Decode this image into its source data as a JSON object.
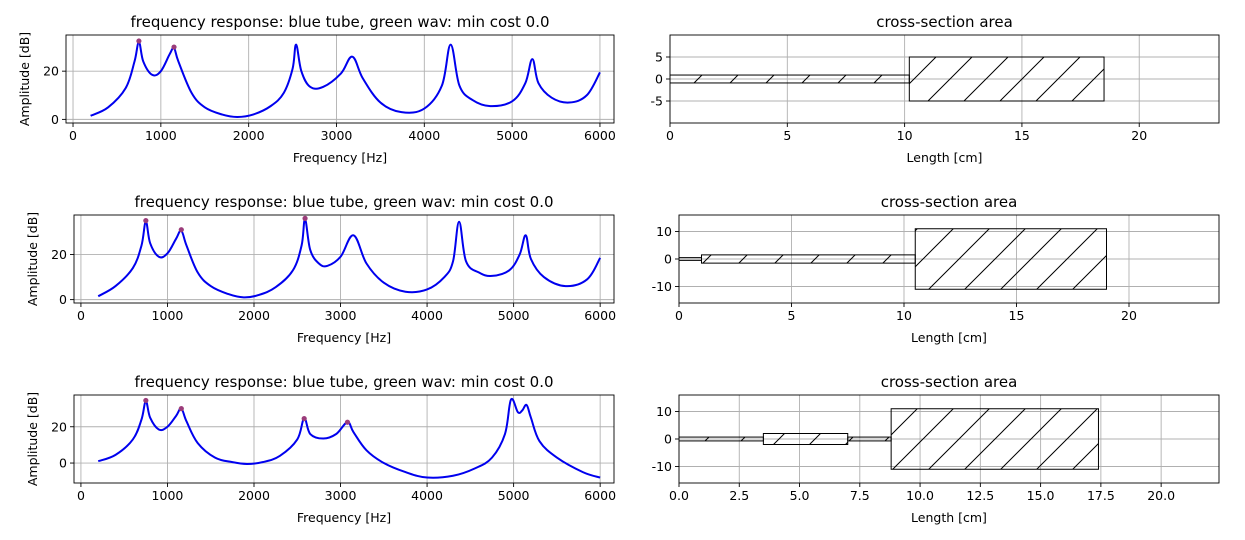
{
  "chart_data": [
    {
      "type": "line",
      "title": "frequency response: blue tube, green wav: min cost 0.0",
      "xlabel": "Frequency [Hz]",
      "ylabel": "Amplitude [dB]",
      "xlim": [
        -80,
        6160
      ],
      "ylim": [
        -1.5,
        35
      ],
      "xticks": [
        0,
        1000,
        2000,
        3000,
        4000,
        5000,
        6000
      ],
      "yticks": [
        0,
        20
      ],
      "grid": true,
      "series": [
        {
          "color": "#0000ee",
          "x": [
            200,
            400,
            600,
            700,
            750,
            800,
            900,
            1000,
            1100,
            1150,
            1200,
            1350,
            1500,
            1700,
            1870,
            2050,
            2250,
            2400,
            2500,
            2540,
            2600,
            2700,
            2850,
            3050,
            3180,
            3300,
            3500,
            3740,
            4000,
            4200,
            4300,
            4400,
            4550,
            4750,
            5000,
            5150,
            5230,
            5300,
            5450,
            5650,
            5850,
            6000
          ],
          "y": [
            1.5,
            5,
            13,
            24,
            32,
            24,
            18.5,
            20,
            27,
            29.5,
            24,
            11,
            5,
            2,
            1,
            2,
            5.5,
            11,
            21,
            31,
            20,
            13.5,
            13.5,
            19,
            26,
            17,
            7,
            3,
            4.5,
            14,
            31,
            14,
            8,
            5.5,
            7.5,
            15,
            25,
            15,
            9,
            7,
            10,
            19.5
          ]
        }
      ],
      "peaks": {
        "color": "#9b3c7a",
        "x": [
          750,
          1150
        ],
        "y": [
          32.5,
          30
        ]
      }
    },
    {
      "type": "line",
      "title": "frequency response: blue tube, green wav: min cost 0.0",
      "xlabel": "Frequency [Hz]",
      "ylabel": "Amplitude [dB]",
      "xlim": [
        -80,
        6160
      ],
      "ylim": [
        -1.5,
        37.5
      ],
      "xticks": [
        0,
        1000,
        2000,
        3000,
        4000,
        5000,
        6000
      ],
      "yticks": [
        0,
        20
      ],
      "grid": true,
      "series": [
        {
          "color": "#0000ee",
          "x": [
            200,
            400,
            600,
            700,
            750,
            800,
            900,
            1000,
            1100,
            1160,
            1220,
            1350,
            1500,
            1700,
            1880,
            2050,
            2250,
            2450,
            2550,
            2590,
            2650,
            2750,
            2850,
            3000,
            3150,
            3300,
            3500,
            3750,
            4000,
            4200,
            4300,
            4370,
            4450,
            4600,
            4750,
            4950,
            5070,
            5140,
            5200,
            5350,
            5600,
            5850,
            6000
          ],
          "y": [
            1.5,
            6,
            14,
            24,
            34.5,
            25,
            19,
            20.5,
            27,
            30.5,
            24,
            12,
            6,
            2.5,
            1,
            2,
            5.5,
            13,
            24,
            35.5,
            22,
            16,
            15,
            19,
            28.5,
            16,
            7.5,
            3.5,
            4.5,
            10,
            17,
            34.5,
            17,
            12,
            10.5,
            13,
            20,
            28.5,
            18,
            10,
            6,
            9,
            18.5
          ]
        }
      ],
      "peaks": {
        "color": "#9b3c7a",
        "x": [
          750,
          1160,
          2590
        ],
        "y": [
          35,
          31,
          36
        ]
      }
    },
    {
      "type": "line",
      "title": "frequency response: blue tube, green wav: min cost 0.0",
      "xlabel": "Frequency [Hz]",
      "ylabel": "Amplitude [dB]",
      "xlim": [
        -80,
        6160
      ],
      "ylim": [
        -11,
        37.5
      ],
      "xticks": [
        0,
        1000,
        2000,
        3000,
        4000,
        5000,
        6000
      ],
      "yticks": [
        0,
        20
      ],
      "grid": true,
      "series": [
        {
          "color": "#0000ee",
          "x": [
            200,
            400,
            600,
            700,
            750,
            800,
            900,
            1000,
            1100,
            1160,
            1220,
            1350,
            1550,
            1750,
            1920,
            2100,
            2300,
            2500,
            2580,
            2650,
            2800,
            2950,
            3080,
            3150,
            3300,
            3500,
            3750,
            4000,
            4300,
            4550,
            4750,
            4900,
            4970,
            5050,
            5100,
            5150,
            5200,
            5300,
            5500,
            5800,
            6000
          ],
          "y": [
            1,
            4.5,
            13,
            24,
            34,
            25,
            18.5,
            20,
            26,
            30,
            23,
            11,
            3,
            0.5,
            -0.5,
            0.5,
            4,
            13,
            24.5,
            16,
            13.5,
            16,
            22.5,
            17,
            7,
            0,
            -5,
            -8,
            -7,
            -3,
            3,
            16,
            35,
            28,
            29,
            32,
            25,
            12,
            3,
            -5,
            -8
          ]
        }
      ],
      "peaks": {
        "color": "#9b3c7a",
        "x": [
          750,
          1160,
          2580,
          3080
        ],
        "y": [
          34.5,
          30,
          24.5,
          22.5
        ]
      }
    },
    {
      "type": "area",
      "title": "cross-section area",
      "xlabel": "Length [cm]",
      "ylabel": "",
      "xlim": [
        0,
        23.4
      ],
      "ylim": [
        -10,
        10
      ],
      "xticks": [
        0,
        5,
        10,
        15,
        20
      ],
      "xtick_labels": [
        "0",
        "5",
        "10",
        "15",
        "20"
      ],
      "yticks": [
        -5,
        0,
        5
      ],
      "grid": true,
      "segments": [
        {
          "x0": 0,
          "x1": 10.2,
          "half_height": 0.9
        },
        {
          "x0": 10.2,
          "x1": 18.5,
          "half_height": 5
        }
      ]
    },
    {
      "type": "area",
      "title": "cross-section area",
      "xlabel": "Length [cm]",
      "ylabel": "",
      "xlim": [
        0,
        24
      ],
      "ylim": [
        -16,
        16
      ],
      "xticks": [
        0,
        5,
        10,
        15,
        20
      ],
      "xtick_labels": [
        "0",
        "5",
        "10",
        "15",
        "20"
      ],
      "yticks": [
        -10,
        0,
        10
      ],
      "grid": true,
      "segments": [
        {
          "x0": 0,
          "x1": 1.0,
          "half_height": 0.5
        },
        {
          "x0": 1.0,
          "x1": 10.5,
          "half_height": 1.5
        },
        {
          "x0": 10.5,
          "x1": 19.0,
          "half_height": 11
        }
      ]
    },
    {
      "type": "area",
      "title": "cross-section area",
      "xlabel": "Length [cm]",
      "ylabel": "",
      "xlim": [
        0,
        22.4
      ],
      "ylim": [
        -16,
        16
      ],
      "xticks": [
        0,
        2.5,
        5,
        7.5,
        10,
        12.5,
        15,
        17.5,
        20
      ],
      "xtick_labels": [
        "0.0",
        "2.5",
        "5.0",
        "7.5",
        "10.0",
        "12.5",
        "15.0",
        "17.5",
        "20.0"
      ],
      "yticks": [
        -10,
        0,
        10
      ],
      "grid": true,
      "segments": [
        {
          "x0": 0,
          "x1": 3.5,
          "half_height": 0.7
        },
        {
          "x0": 3.5,
          "x1": 7.0,
          "half_height": 2
        },
        {
          "x0": 7.0,
          "x1": 8.8,
          "half_height": 0.7
        },
        {
          "x0": 8.8,
          "x1": 17.4,
          "half_height": 11
        }
      ]
    }
  ]
}
